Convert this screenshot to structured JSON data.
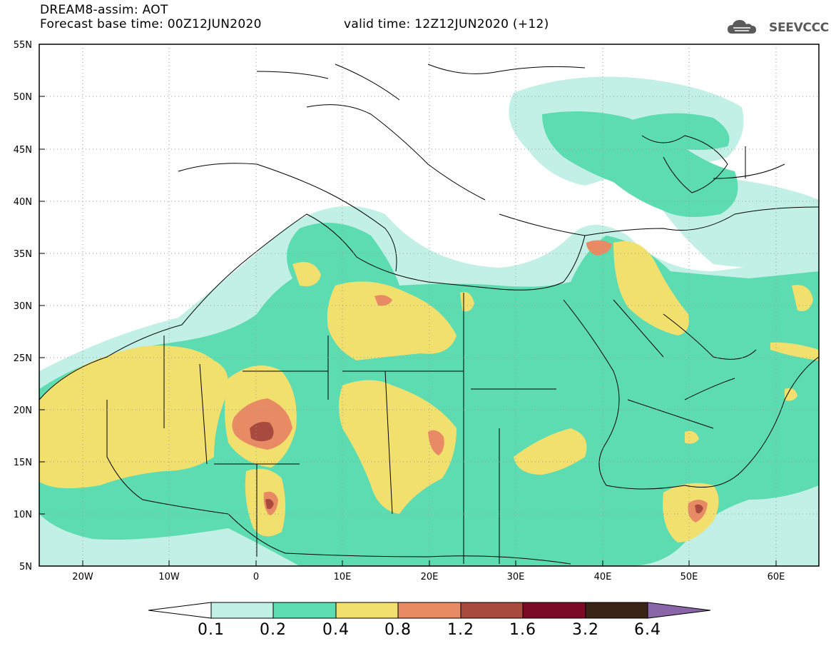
{
  "header": {
    "title": "DREAM8-assim: AOT",
    "base_time": "Forecast base time: 00Z12JUN2020",
    "valid_time": "valid time: 12Z12JUN2020 (+12)"
  },
  "logo": {
    "text": "SEEVCCC",
    "icon": "cloud-icon"
  },
  "axes": {
    "lat_labels": [
      "55N",
      "50N",
      "45N",
      "40N",
      "35N",
      "30N",
      "25N",
      "20N",
      "15N",
      "10N",
      "5N"
    ],
    "lon_labels": [
      "20W",
      "10W",
      "0",
      "10E",
      "20E",
      "30E",
      "40E",
      "50E",
      "60E"
    ]
  },
  "colorbar": {
    "labels": [
      "0.1",
      "0.2",
      "0.4",
      "0.8",
      "1.2",
      "1.6",
      "3.2",
      "6.4"
    ],
    "colors": [
      "#ffffff",
      "#c2f0e6",
      "#5ddcb2",
      "#f2e06e",
      "#e88a64",
      "#a84a3e",
      "#7a0a26",
      "#3a2416",
      "#8a66a8"
    ]
  },
  "legend_palette": {
    "land": "#ffffff",
    "border": "#000000",
    "grid": "#9a9a9a"
  }
}
